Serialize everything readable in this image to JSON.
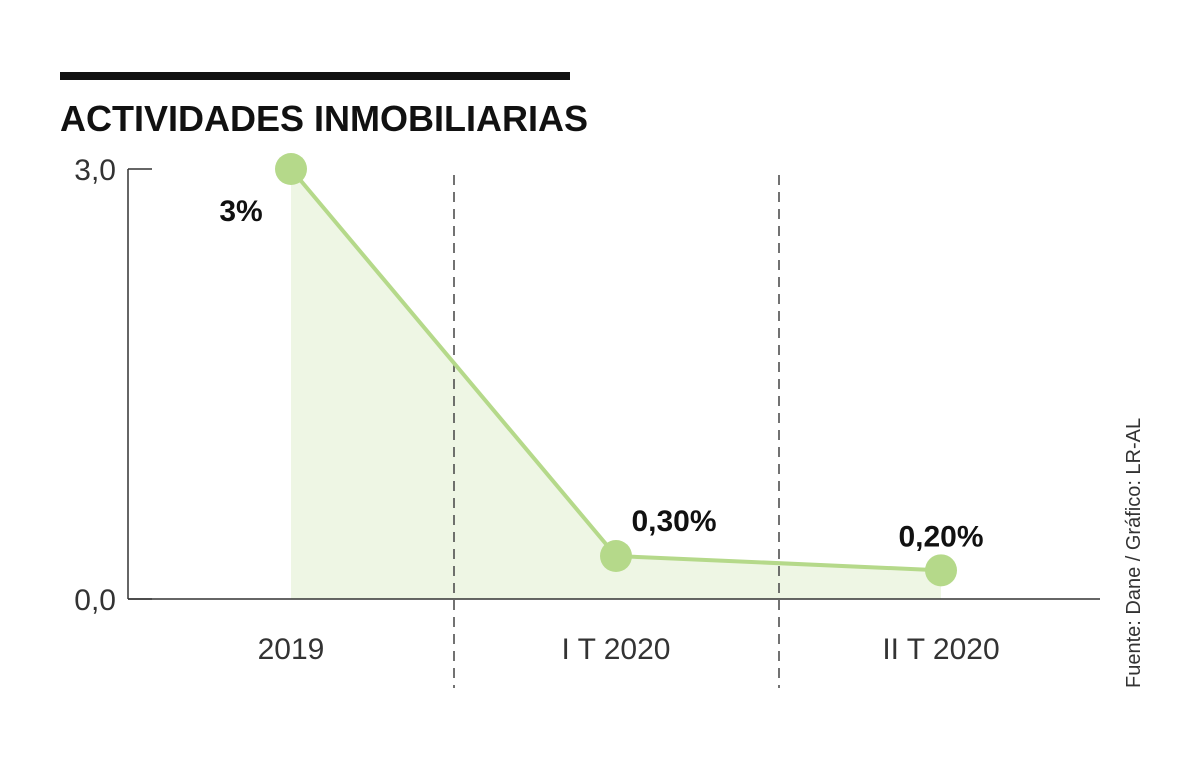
{
  "chart_data": {
    "type": "area",
    "title": "ACTIVIDADES INMOBILIARIAS",
    "categories": [
      "2019",
      "I T 2020",
      "II T 2020"
    ],
    "values": [
      3.0,
      0.3,
      0.2
    ],
    "data_labels": [
      "3%",
      "0,30%",
      "0,20%"
    ],
    "yticks": [
      {
        "value": 0,
        "label": "0,0"
      },
      {
        "value": 3,
        "label": "3,0"
      }
    ],
    "ylim": [
      0,
      3
    ],
    "xlabel": "",
    "ylabel": "",
    "grid": false,
    "category_separators": "dashed",
    "source": "Fuente: Dane / Gráfico: LR-AL",
    "colors": {
      "line": "#b5d98a",
      "marker": "#b5d98a",
      "fill": "#eef6e4",
      "title_bar": "#111111",
      "axis": "#333333",
      "separator": "#444444"
    }
  }
}
